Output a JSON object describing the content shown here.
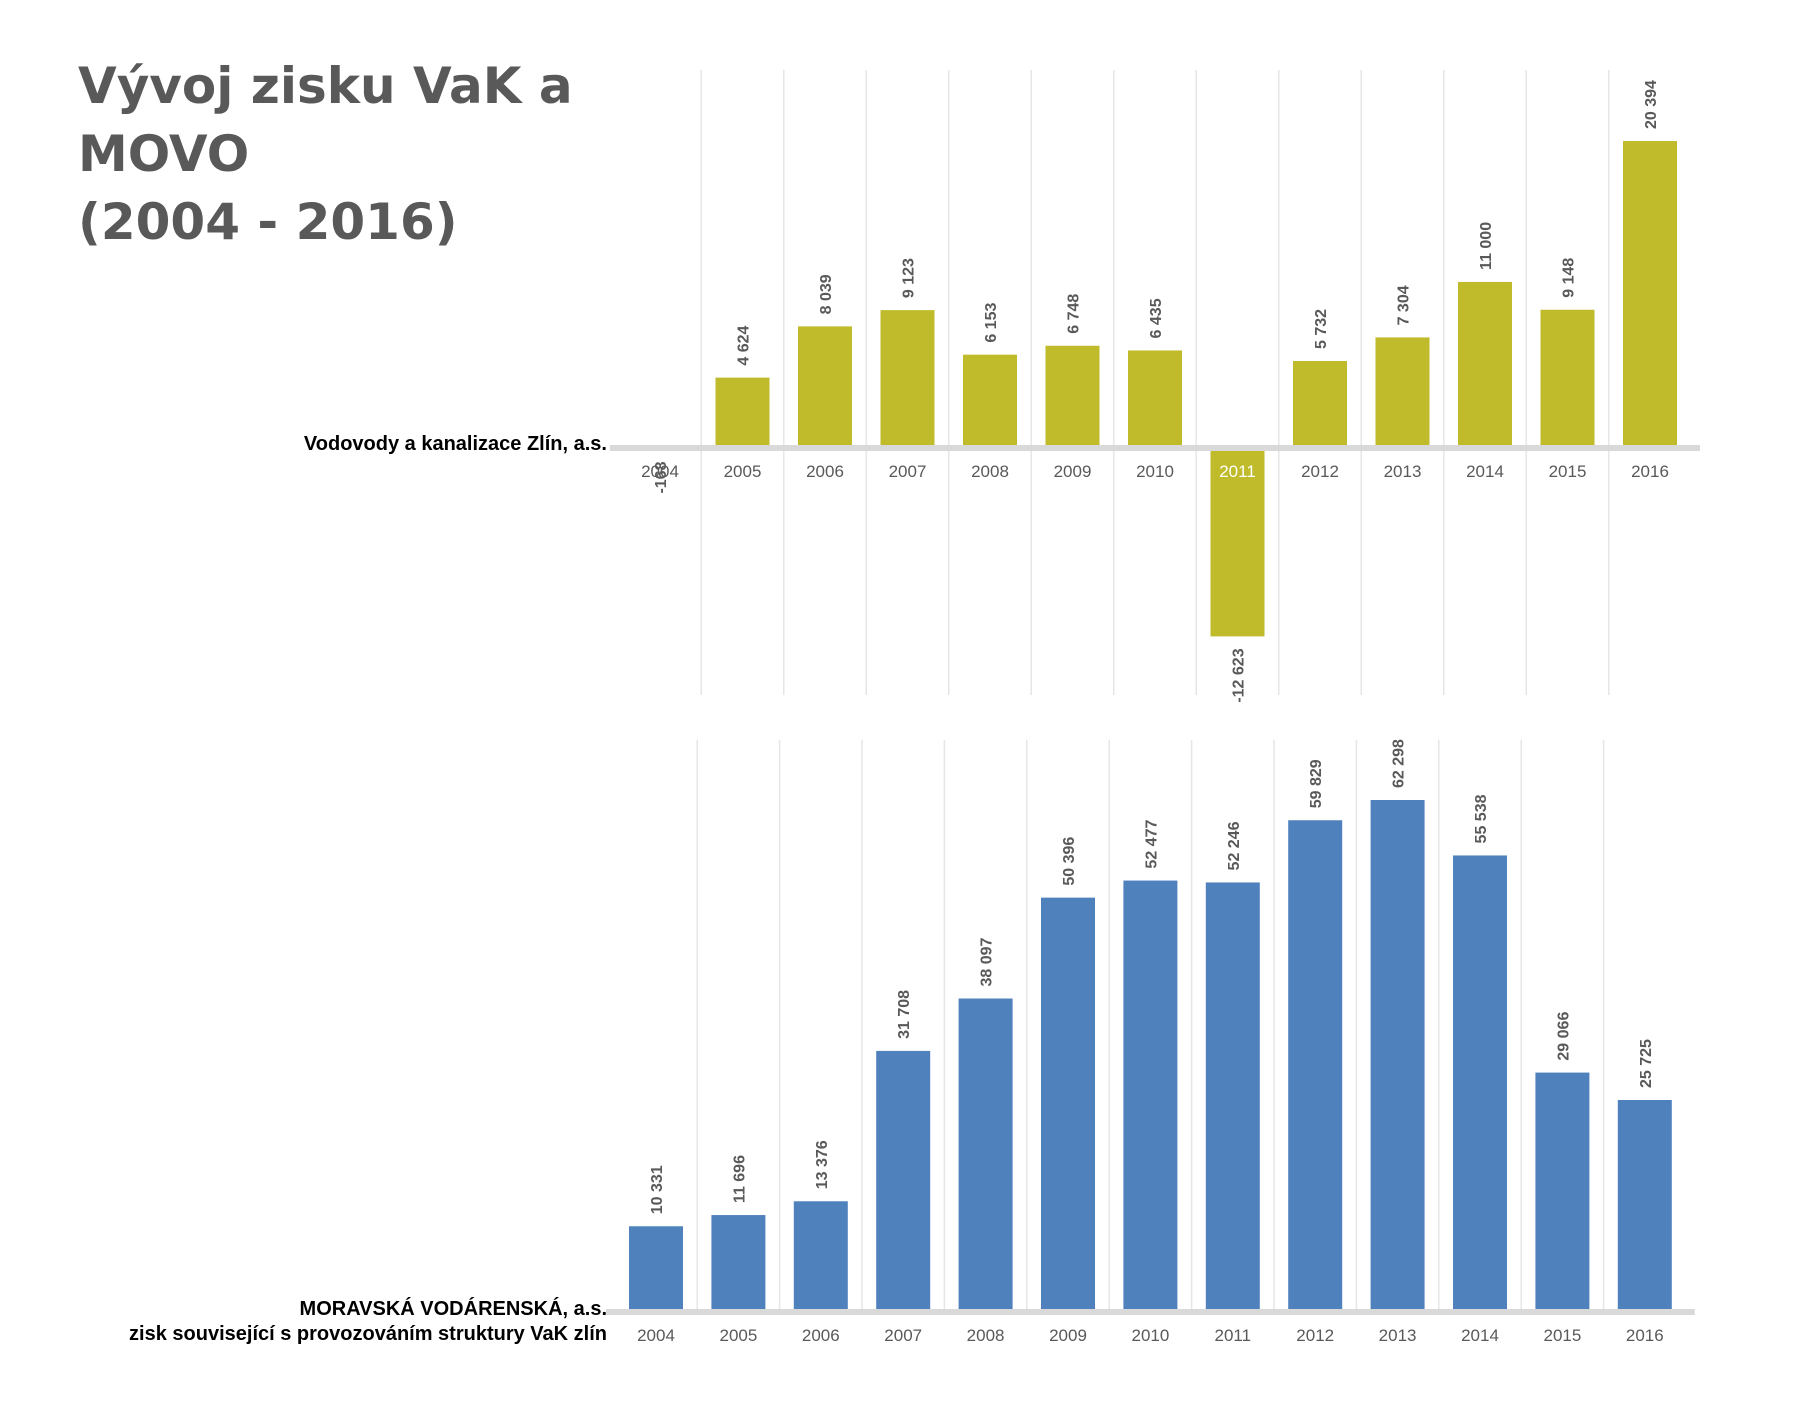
{
  "title": {
    "line1": "Vývoj zisku VaK a MOVO",
    "line2": "(2004 - 2016)"
  },
  "chart_data": [
    {
      "type": "bar",
      "series_label": "Vodovody a kanalizace Zlín, a.s.",
      "categories": [
        "2004",
        "2005",
        "2006",
        "2007",
        "2008",
        "2009",
        "2010",
        "2011",
        "2012",
        "2013",
        "2014",
        "2015",
        "2016"
      ],
      "values": [
        -168,
        4624,
        8039,
        9123,
        6153,
        6748,
        6435,
        -12623,
        5732,
        7304,
        11000,
        9148,
        20394
      ],
      "value_labels": [
        "-168",
        "4 624",
        "8 039",
        "9 123",
        "6 153",
        "6 748",
        "6 435",
        "-12 623",
        "5 732",
        "7 304",
        "11 000",
        "9 148",
        "20 394"
      ],
      "highlighted_category": "2011",
      "color": "#bfbb2b",
      "ylim": [
        -16500,
        25600
      ],
      "grid": "vertical",
      "title": "",
      "xlabel": "",
      "ylabel": ""
    },
    {
      "type": "bar",
      "series_label": [
        "MORAVSKÁ VODÁRENSKÁ, a.s.",
        "zisk související s provozováním struktury VaK zlín"
      ],
      "categories": [
        "2004",
        "2005",
        "2006",
        "2007",
        "2008",
        "2009",
        "2010",
        "2011",
        "2012",
        "2013",
        "2014",
        "2015",
        "2016"
      ],
      "values": [
        10331,
        11696,
        13376,
        31708,
        38097,
        50396,
        52477,
        52246,
        59829,
        62298,
        55538,
        29066,
        25725
      ],
      "value_labels": [
        "10 331",
        "11 696",
        "13 376",
        "31 708",
        "38 097",
        "50 396",
        "52 477",
        "52 246",
        "59 829",
        "62 298",
        "55 538",
        "29 066",
        "25 725"
      ],
      "color": "#4f81bd",
      "ylim": [
        0,
        69000
      ],
      "grid": "vertical",
      "title": "",
      "xlabel": "",
      "ylabel": ""
    }
  ],
  "colors": {
    "title": "#595959",
    "axis": "#d9d9d9",
    "grid": "#e6e6e6",
    "tick_label": "#595959",
    "value_label": "#595959",
    "highlight_tick": "#ffffff"
  }
}
